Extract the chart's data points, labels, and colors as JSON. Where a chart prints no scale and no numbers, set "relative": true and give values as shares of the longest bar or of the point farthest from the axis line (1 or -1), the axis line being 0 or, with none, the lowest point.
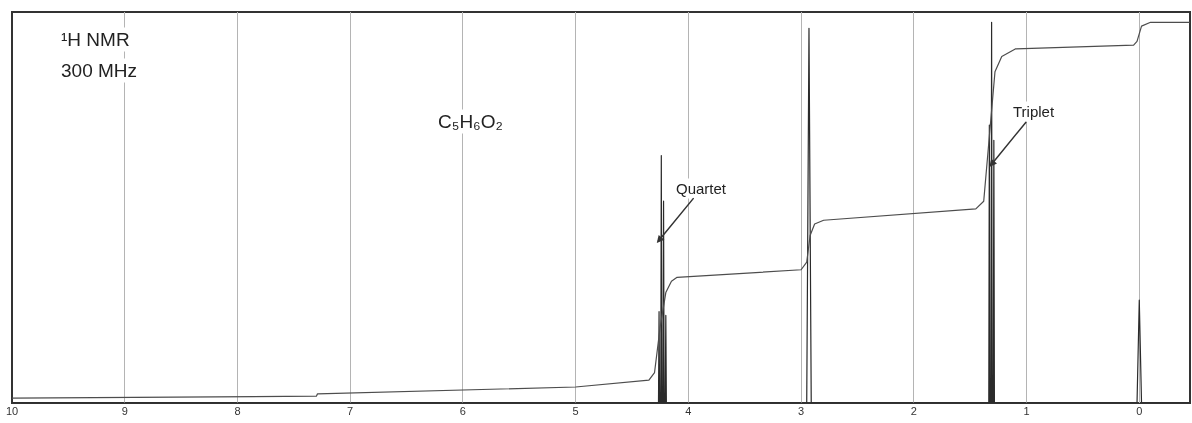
{
  "chart_data": {
    "type": "line",
    "relative": true,
    "marker": "none",
    "line_style": "solid",
    "grid": "x",
    "xlim": [
      10,
      -0.45
    ],
    "xticks": [
      10,
      9,
      8,
      7,
      6,
      5,
      4,
      3,
      2,
      1,
      0
    ],
    "annotations": [
      "¹H NMR",
      "300 MHz",
      "C₅H₆O₂",
      {
        "text": "Quartet",
        "x": 4.28,
        "y": 0.42
      },
      {
        "text": "Triplet",
        "x": 1.33,
        "y": 0.62
      }
    ],
    "series": [
      {
        "color": "#2b2b2b",
        "x": [
          10,
          4.3,
          4.265,
          4.26,
          4.255,
          4.245,
          4.24,
          4.235,
          4.225,
          4.22,
          4.215,
          4.205,
          4.2,
          4.195,
          4.17,
          2.95,
          2.93,
          2.91,
          1.36,
          1.335,
          1.33,
          1.325,
          1.315,
          1.31,
          1.305,
          1.295,
          1.29,
          1.285,
          1.26,
          0.02,
          0,
          -0.02,
          -0.45
        ],
        "values": [
          0,
          0,
          0,
          0.24,
          0,
          0,
          0.65,
          0,
          0,
          0.53,
          0,
          0,
          0.23,
          0,
          0,
          0,
          0.984,
          0,
          0,
          0,
          0.73,
          0,
          0,
          1,
          0,
          0,
          0.69,
          0,
          0,
          0,
          0.27,
          0,
          0
        ]
      },
      {
        "color": "#4d4d4d",
        "x": [
          10,
          7.3,
          7.29,
          5,
          4.35,
          4.3,
          4.25,
          4.2,
          4.15,
          4.1,
          3.0,
          2.95,
          2.92,
          2.88,
          2.8,
          1.45,
          1.38,
          1.33,
          1.28,
          1.22,
          1.1,
          0.05,
          0.02,
          -0.02,
          -0.1,
          -0.45
        ],
        "values": [
          0.013,
          0.018,
          0.024,
          0.042,
          0.06,
          0.08,
          0.2,
          0.29,
          0.32,
          0.33,
          0.35,
          0.37,
          0.44,
          0.47,
          0.48,
          0.51,
          0.53,
          0.7,
          0.87,
          0.91,
          0.93,
          0.94,
          0.95,
          0.99,
          1.0,
          1.0
        ]
      }
    ]
  }
}
